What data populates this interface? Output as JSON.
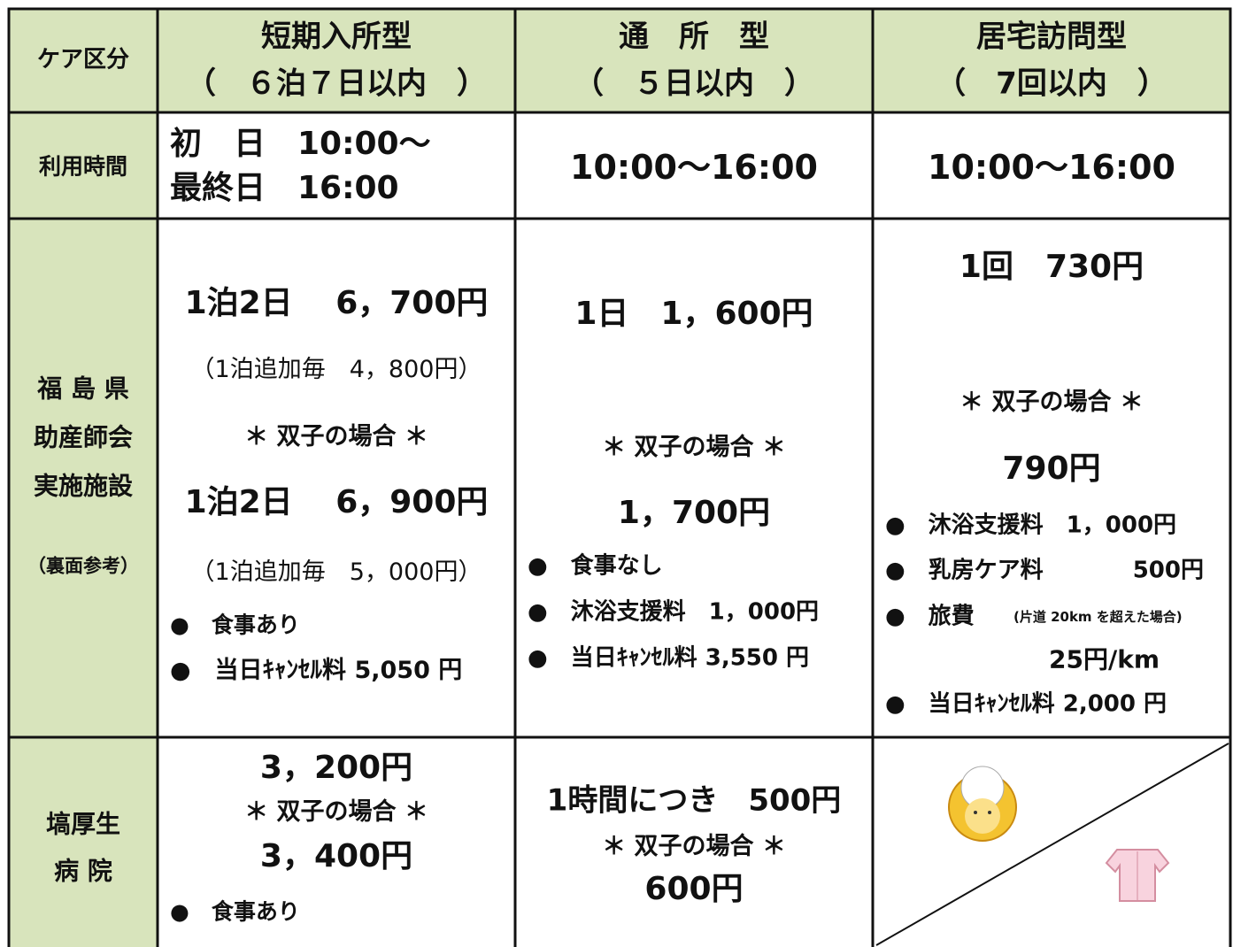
{
  "table": {
    "header": [
      [
        "ケア区分"
      ],
      [
        "短期入所型",
        "（　６泊７日以内　）"
      ],
      [
        "通　所　型",
        "（　５日以内　）"
      ],
      [
        "居宅訪問型",
        "（　7回以内　）"
      ]
    ],
    "rows": [
      {
        "label": [
          "利用時間"
        ],
        "cells": [
          [
            "初　日　10:00～",
            "最終日　16:00"
          ],
          [
            "10:00～16:00"
          ],
          [
            "10:00～16:00"
          ]
        ]
      },
      {
        "label": [
          "福 島 県",
          "助産師会",
          "実施施設",
          "（裏面参考）"
        ],
        "cells": [
          [
            "1泊2日　 6，700円",
            "（1泊追加毎　4，800円）",
            "＊ 双子の場合 ＊",
            "1泊2日　 6，900円",
            "（1泊追加毎　5，000円）",
            "●　食事あり",
            "●　当日ｷｬﾝｾﾙ料 5,050 円"
          ],
          [
            "1日　1，600円",
            "＊ 双子の場合 ＊",
            "1，700円",
            "●　食事なし",
            "●　沐浴支援料　1，000円",
            "●　当日ｷｬﾝｾﾙ料 3,550 円"
          ],
          [
            "1回　730円",
            "＊ 双子の場合 ＊",
            "790円",
            "●　沐浴支援料　1，000円",
            "●　乳房ケア料",
            "500円",
            "●　旅費",
            "(片道 20km を超えた場合)",
            "25円/km",
            "●　当日ｷｬﾝｾﾙ料 2,000 円"
          ]
        ]
      },
      {
        "label": [
          "塙厚生",
          "病 院"
        ],
        "cells": [
          [
            "3，200円",
            "＊ 双子の場合 ＊",
            "3，400円",
            "●　食事あり"
          ],
          [
            "1時間につき　500円",
            "＊ 双子の場合 ＊",
            "600円"
          ]
        ]
      }
    ]
  }
}
